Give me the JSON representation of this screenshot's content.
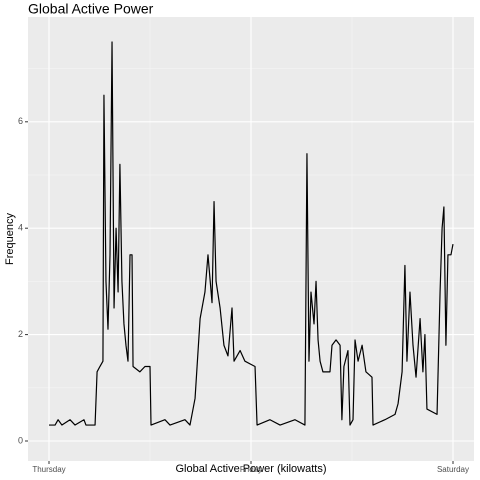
{
  "chart_data": {
    "type": "line",
    "title": "Global Active Power",
    "xlabel": "Global Active Power (kilowatts)",
    "ylabel": "Frequency",
    "x": [
      0,
      0.03,
      0.045,
      0.064,
      0.104,
      0.129,
      0.173,
      0.183,
      0.228,
      0.238,
      0.252,
      0.267,
      0.272,
      0.282,
      0.292,
      0.302,
      0.312,
      0.322,
      0.332,
      0.342,
      0.351,
      0.361,
      0.371,
      0.381,
      0.391,
      0.401,
      0.411,
      0.416,
      0.45,
      0.475,
      0.5,
      0.505,
      0.574,
      0.599,
      0.673,
      0.698,
      0.723,
      0.748,
      0.772,
      0.787,
      0.807,
      0.817,
      0.827,
      0.847,
      0.866,
      0.886,
      0.906,
      0.916,
      0.946,
      0.97,
      1.02,
      1.03,
      1.094,
      1.144,
      1.218,
      1.267,
      1.277,
      1.287,
      1.297,
      1.312,
      1.322,
      1.332,
      1.342,
      1.356,
      1.391,
      1.401,
      1.421,
      1.441,
      1.45,
      1.46,
      1.48,
      1.49,
      1.505,
      1.515,
      1.53,
      1.55,
      1.569,
      1.599,
      1.604,
      1.663,
      1.713,
      1.728,
      1.748,
      1.762,
      1.772,
      1.787,
      1.802,
      1.817,
      1.837,
      1.851,
      1.861,
      1.871,
      1.921,
      1.936,
      1.946,
      1.955,
      1.965,
      1.975,
      1.99,
      2
    ],
    "series": [
      {
        "color": "#000000",
        "values": [
          0.3,
          0.3,
          0.4,
          0.3,
          0.4,
          0.3,
          0.4,
          0.3,
          0.3,
          1.3,
          1.4,
          1.5,
          6.5,
          3,
          2.1,
          3.5,
          7.5,
          2.5,
          4,
          2.8,
          5.2,
          3,
          2.2,
          1.8,
          1.5,
          3.5,
          3.5,
          1.4,
          1.3,
          1.4,
          1.4,
          0.3,
          0.4,
          0.3,
          0.4,
          0.3,
          0.8,
          2.3,
          2.8,
          3.5,
          2.6,
          4.5,
          3,
          2.5,
          1.8,
          1.6,
          2.5,
          1.5,
          1.7,
          1.5,
          1.4,
          0.3,
          0.4,
          0.3,
          0.4,
          0.3,
          5.4,
          1.5,
          2.8,
          2.2,
          3,
          1.9,
          1.5,
          1.3,
          1.3,
          1.8,
          1.9,
          1.8,
          0.4,
          1.4,
          1.7,
          0.3,
          0.4,
          1.9,
          1.5,
          1.8,
          1.3,
          1.2,
          0.3,
          0.4,
          0.5,
          0.7,
          1.3,
          3.3,
          1.5,
          2.8,
          1.8,
          1.2,
          2.3,
          1.3,
          2,
          0.6,
          0.5,
          2.8,
          4,
          4.4,
          1.8,
          3.5,
          3.5,
          3.7
        ]
      }
    ],
    "xlim": [
      -0.104,
      2.104
    ],
    "xticks": [
      {
        "value": 0,
        "label": "Thursday"
      },
      {
        "value": 1,
        "label": "Friday"
      },
      {
        "value": 2,
        "label": "Saturday"
      }
    ],
    "ylim": [
      -0.376,
      7.97
    ],
    "yticks": [
      0,
      2,
      4,
      6
    ],
    "grid": true
  }
}
